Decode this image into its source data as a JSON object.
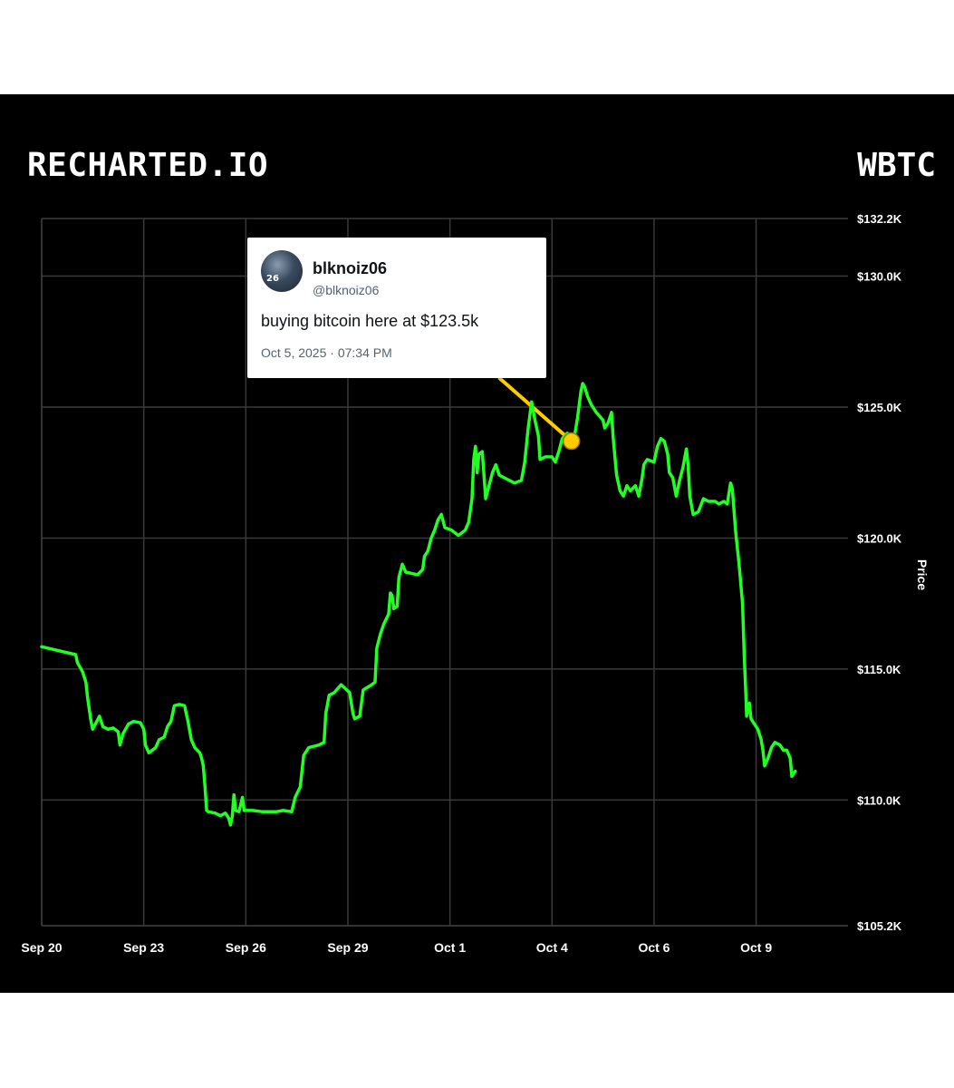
{
  "brand": "RECHARTED.IO",
  "ticker": "WBTC",
  "tweet": {
    "name": "blknoiz06",
    "handle": "@blknoiz06",
    "text": "buying bitcoin here at $123.5k",
    "time": "Oct 5, 2025 · 07:34 PM",
    "avatar_badge": "26"
  },
  "colors": {
    "background": "#000000",
    "line": "#22ff22",
    "marker": "#ffcc00",
    "grid": "#3a3a3a"
  },
  "chart_data": {
    "type": "line",
    "title": "",
    "xlabel": "",
    "ylabel": "Price",
    "grid": true,
    "x_ticks": [
      "Sep 20",
      "Sep 23",
      "Sep 26",
      "Sep 29",
      "Oct 1",
      "Oct 4",
      "Oct 6",
      "Oct 9"
    ],
    "x_tick_days": [
      0,
      3,
      6,
      9,
      12,
      15,
      18,
      21
    ],
    "y_ticks": [
      {
        "value": 132200,
        "label": "$132.2K"
      },
      {
        "value": 130000,
        "label": "$130.0K"
      },
      {
        "value": 125000,
        "label": "$125.0K"
      },
      {
        "value": 120000,
        "label": "$120.0K"
      },
      {
        "value": 115000,
        "label": "$115.0K"
      },
      {
        "value": 110000,
        "label": "$110.0K"
      },
      {
        "value": 105200,
        "label": "$105.2K"
      }
    ],
    "ylim": [
      105200,
      132200
    ],
    "xlim_days": [
      0,
      23.7
    ],
    "series": [
      {
        "name": "",
        "points": [
          [
            0.0,
            115850
          ],
          [
            0.5,
            115700
          ],
          [
            1.0,
            115550
          ],
          [
            1.05,
            115250
          ],
          [
            1.2,
            114900
          ],
          [
            1.3,
            114500
          ],
          [
            1.35,
            113900
          ],
          [
            1.45,
            113000
          ],
          [
            1.5,
            112700
          ],
          [
            1.6,
            112950
          ],
          [
            1.7,
            113200
          ],
          [
            1.8,
            112800
          ],
          [
            1.95,
            112700
          ],
          [
            2.1,
            112750
          ],
          [
            2.25,
            112600
          ],
          [
            2.3,
            112100
          ],
          [
            2.4,
            112550
          ],
          [
            2.55,
            112900
          ],
          [
            2.7,
            113000
          ],
          [
            2.9,
            112950
          ],
          [
            3.0,
            112700
          ],
          [
            3.05,
            112100
          ],
          [
            3.15,
            111800
          ],
          [
            3.35,
            112000
          ],
          [
            3.45,
            112300
          ],
          [
            3.6,
            112400
          ],
          [
            3.7,
            112800
          ],
          [
            3.8,
            113000
          ],
          [
            3.9,
            113600
          ],
          [
            4.05,
            113650
          ],
          [
            4.2,
            113600
          ],
          [
            4.3,
            113000
          ],
          [
            4.4,
            112300
          ],
          [
            4.5,
            112000
          ],
          [
            4.65,
            111800
          ],
          [
            4.7,
            111600
          ],
          [
            4.75,
            111300
          ],
          [
            4.8,
            110500
          ],
          [
            4.85,
            109600
          ],
          [
            4.9,
            109550
          ],
          [
            5.1,
            109500
          ],
          [
            5.25,
            109400
          ],
          [
            5.4,
            109500
          ],
          [
            5.5,
            109300
          ],
          [
            5.55,
            109050
          ],
          [
            5.6,
            109350
          ],
          [
            5.65,
            110200
          ],
          [
            5.7,
            109600
          ],
          [
            5.8,
            109550
          ],
          [
            5.9,
            110100
          ],
          [
            5.95,
            109600
          ],
          [
            6.2,
            109600
          ],
          [
            6.5,
            109550
          ],
          [
            6.9,
            109550
          ],
          [
            7.1,
            109600
          ],
          [
            7.35,
            109550
          ],
          [
            7.45,
            110100
          ],
          [
            7.6,
            110500
          ],
          [
            7.7,
            111700
          ],
          [
            7.85,
            112000
          ],
          [
            8.15,
            112100
          ],
          [
            8.3,
            112200
          ],
          [
            8.35,
            113300
          ],
          [
            8.45,
            114000
          ],
          [
            8.6,
            114100
          ],
          [
            8.8,
            114400
          ],
          [
            9.05,
            114100
          ],
          [
            9.15,
            113300
          ],
          [
            9.2,
            113100
          ],
          [
            9.35,
            113200
          ],
          [
            9.45,
            114200
          ],
          [
            9.7,
            114400
          ],
          [
            9.8,
            114500
          ],
          [
            9.85,
            115800
          ],
          [
            9.95,
            116300
          ],
          [
            10.05,
            116700
          ],
          [
            10.2,
            117100
          ],
          [
            10.25,
            117900
          ],
          [
            10.3,
            117800
          ],
          [
            10.35,
            117300
          ],
          [
            10.45,
            117400
          ],
          [
            10.5,
            118500
          ],
          [
            10.6,
            119000
          ],
          [
            10.7,
            118700
          ],
          [
            11.05,
            118600
          ],
          [
            11.2,
            118800
          ],
          [
            11.25,
            119300
          ],
          [
            11.35,
            119500
          ],
          [
            11.45,
            120000
          ],
          [
            11.55,
            120300
          ],
          [
            11.65,
            120700
          ],
          [
            11.75,
            120900
          ],
          [
            11.85,
            120400
          ],
          [
            12.05,
            120300
          ],
          [
            12.25,
            120100
          ],
          [
            12.45,
            120300
          ],
          [
            12.55,
            120600
          ],
          [
            12.65,
            121500
          ],
          [
            12.7,
            123000
          ],
          [
            12.75,
            123500
          ],
          [
            12.8,
            122500
          ],
          [
            12.85,
            123200
          ],
          [
            12.95,
            123300
          ],
          [
            13.0,
            122400
          ],
          [
            13.05,
            121500
          ],
          [
            13.15,
            122000
          ],
          [
            13.25,
            122500
          ],
          [
            13.35,
            122800
          ],
          [
            13.45,
            122400
          ],
          [
            13.6,
            122300
          ],
          [
            13.9,
            122100
          ],
          [
            14.1,
            122200
          ],
          [
            14.2,
            122900
          ],
          [
            14.3,
            124200
          ],
          [
            14.4,
            125200
          ],
          [
            14.5,
            124500
          ],
          [
            14.6,
            123900
          ],
          [
            14.65,
            123000
          ],
          [
            14.8,
            123100
          ],
          [
            15.0,
            123100
          ],
          [
            15.1,
            122900
          ],
          [
            15.2,
            123300
          ],
          [
            15.3,
            123800
          ],
          [
            15.45,
            124000
          ],
          [
            15.55,
            123700
          ],
          [
            15.65,
            123800
          ],
          [
            15.75,
            124600
          ],
          [
            15.85,
            125600
          ],
          [
            15.9,
            125900
          ],
          [
            15.95,
            125800
          ],
          [
            16.05,
            125400
          ],
          [
            16.15,
            125100
          ],
          [
            16.3,
            124800
          ],
          [
            16.5,
            124500
          ],
          [
            16.55,
            124200
          ],
          [
            16.65,
            124400
          ],
          [
            16.75,
            124800
          ],
          [
            16.8,
            123800
          ],
          [
            16.9,
            122400
          ],
          [
            17.0,
            121800
          ],
          [
            17.1,
            121600
          ],
          [
            17.2,
            122000
          ],
          [
            17.3,
            121800
          ],
          [
            17.45,
            122000
          ],
          [
            17.55,
            121600
          ],
          [
            17.65,
            122300
          ],
          [
            17.7,
            122800
          ],
          [
            17.8,
            123000
          ],
          [
            18.0,
            122900
          ],
          [
            18.1,
            123500
          ],
          [
            18.2,
            123800
          ],
          [
            18.3,
            123700
          ],
          [
            18.4,
            123200
          ],
          [
            18.45,
            122500
          ],
          [
            18.55,
            122300
          ],
          [
            18.65,
            121600
          ],
          [
            18.75,
            122200
          ],
          [
            18.85,
            122700
          ],
          [
            18.95,
            123400
          ],
          [
            19.0,
            122800
          ],
          [
            19.05,
            121600
          ],
          [
            19.15,
            120900
          ],
          [
            19.3,
            121000
          ],
          [
            19.45,
            121500
          ],
          [
            19.6,
            121400
          ],
          [
            19.8,
            121400
          ],
          [
            19.9,
            121300
          ],
          [
            20.05,
            121400
          ],
          [
            20.15,
            121300
          ],
          [
            20.25,
            122100
          ],
          [
            20.3,
            121900
          ],
          [
            20.4,
            120200
          ],
          [
            20.5,
            119000
          ],
          [
            20.6,
            117500
          ],
          [
            20.65,
            115500
          ],
          [
            20.7,
            114000
          ],
          [
            20.72,
            113200
          ],
          [
            20.8,
            113700
          ],
          [
            20.85,
            113100
          ],
          [
            20.95,
            112900
          ],
          [
            21.05,
            112700
          ],
          [
            21.15,
            112300
          ],
          [
            21.2,
            111900
          ],
          [
            21.25,
            111300
          ],
          [
            21.35,
            111600
          ],
          [
            21.45,
            112000
          ],
          [
            21.55,
            112200
          ],
          [
            21.7,
            112100
          ],
          [
            21.8,
            111900
          ],
          [
            21.9,
            111900
          ],
          [
            22.0,
            111600
          ],
          [
            22.05,
            110900
          ],
          [
            22.15,
            111100
          ]
        ]
      }
    ],
    "annotation": {
      "day": 15.57,
      "value": 123700,
      "text": "buying bitcoin here at $123.5k"
    }
  }
}
